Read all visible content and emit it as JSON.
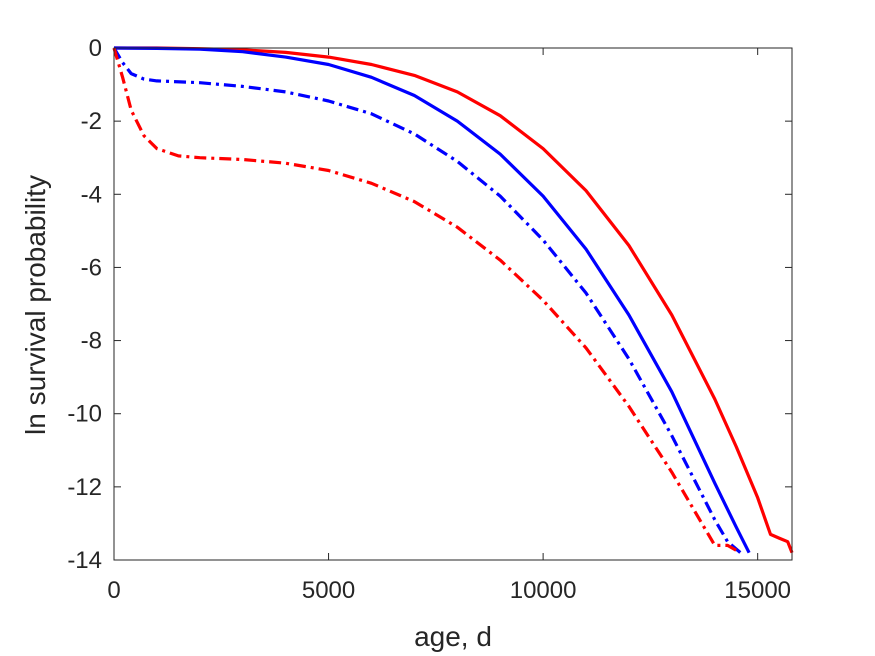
{
  "chart_data": {
    "type": "line",
    "title": "",
    "xlabel": "age, d",
    "ylabel": "ln survival probability",
    "xlim": [
      0,
      15800
    ],
    "ylim": [
      -14,
      0
    ],
    "xticks": [
      0,
      5000,
      10000,
      15000
    ],
    "xtick_labels": [
      "0",
      "5000",
      "10000",
      "15000"
    ],
    "yticks": [
      0,
      -2,
      -4,
      -6,
      -8,
      -10,
      -12,
      -14
    ],
    "ytick_labels": [
      "0",
      "-2",
      "-4",
      "-6",
      "-8",
      "-10",
      "-12",
      "-14"
    ],
    "grid": false,
    "legend": "none",
    "series": [
      {
        "color": "#ff0000",
        "line_style": "solid",
        "x": [
          0,
          1000,
          2000,
          3000,
          4000,
          5000,
          6000,
          7000,
          8000,
          9000,
          10000,
          11000,
          12000,
          13000,
          14000,
          14500,
          15000,
          15300,
          15500,
          15700,
          15800
        ],
        "y": [
          0,
          0,
          -0.02,
          -0.05,
          -0.12,
          -0.25,
          -0.45,
          -0.75,
          -1.2,
          -1.85,
          -2.75,
          -3.9,
          -5.4,
          -7.3,
          -9.6,
          -10.9,
          -12.3,
          -13.3,
          -13.4,
          -13.5,
          -13.8
        ]
      },
      {
        "color": "#0000ff",
        "line_style": "solid",
        "x": [
          0,
          1000,
          2000,
          3000,
          4000,
          5000,
          6000,
          7000,
          8000,
          9000,
          10000,
          11000,
          12000,
          13000,
          14000,
          14500,
          14800
        ],
        "y": [
          0,
          -0.01,
          -0.03,
          -0.1,
          -0.25,
          -0.45,
          -0.8,
          -1.3,
          -2.0,
          -2.9,
          -4.05,
          -5.5,
          -7.3,
          -9.4,
          -11.9,
          -13.1,
          -13.8
        ]
      },
      {
        "color": "#0000ff",
        "line_style": "dashdot",
        "x": [
          0,
          200,
          400,
          700,
          1000,
          2000,
          3000,
          4000,
          5000,
          6000,
          7000,
          8000,
          9000,
          10000,
          11000,
          12000,
          13000,
          14000,
          14300,
          14600
        ],
        "y": [
          0,
          -0.4,
          -0.7,
          -0.85,
          -0.9,
          -0.95,
          -1.05,
          -1.2,
          -1.45,
          -1.8,
          -2.35,
          -3.1,
          -4.05,
          -5.25,
          -6.7,
          -8.5,
          -10.6,
          -12.9,
          -13.5,
          -13.8
        ]
      },
      {
        "color": "#ff0000",
        "line_style": "dashdot",
        "x": [
          0,
          200,
          400,
          700,
          1000,
          1500,
          2000,
          3000,
          4000,
          5000,
          6000,
          7000,
          8000,
          9000,
          10000,
          11000,
          12000,
          13000,
          14000,
          14300,
          14600
        ],
        "y": [
          0,
          -0.8,
          -1.7,
          -2.4,
          -2.75,
          -2.95,
          -3.0,
          -3.05,
          -3.15,
          -3.35,
          -3.7,
          -4.2,
          -4.9,
          -5.8,
          -6.9,
          -8.2,
          -9.8,
          -11.6,
          -13.6,
          -13.6,
          -13.8
        ]
      }
    ]
  }
}
